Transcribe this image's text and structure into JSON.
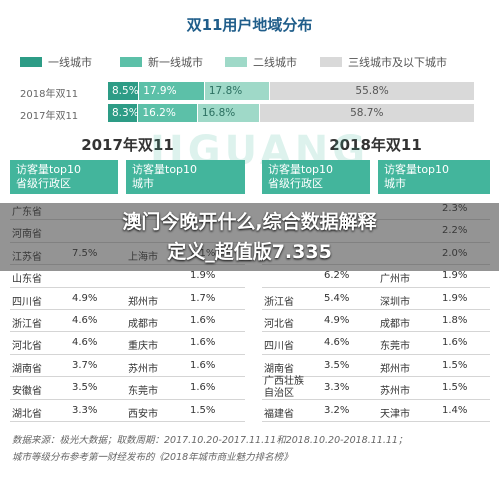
{
  "title": "双11用户地域分布",
  "legend": [
    {
      "label": "一线城市",
      "color": "#2d9c86"
    },
    {
      "label": "新一线城市",
      "color": "#5cc0a8"
    },
    {
      "label": "二线城市",
      "color": "#9fd9c8"
    },
    {
      "label": "三线城市及以下城市",
      "color": "#d9d9d9"
    }
  ],
  "chart_data": {
    "type": "bar",
    "stacked": true,
    "orientation": "horizontal",
    "title": "双11用户地域分布",
    "categories": [
      "2018年双11",
      "2017年双11"
    ],
    "series": [
      {
        "name": "一线城市",
        "values": [
          8.5,
          8.3
        ],
        "labels": [
          "8.5%",
          "8.3%"
        ]
      },
      {
        "name": "新一线城市",
        "values": [
          17.9,
          16.2
        ],
        "labels": [
          "17.9%",
          "16.2%"
        ]
      },
      {
        "name": "二线城市",
        "values": [
          17.8,
          16.8
        ],
        "labels": [
          "17.8%",
          "16.8%"
        ]
      },
      {
        "name": "三线城市及以下城市",
        "values": [
          55.8,
          58.7
        ],
        "labels": [
          "55.8%",
          "58.7%"
        ]
      }
    ]
  },
  "watermark": "JIGUANG",
  "panels": [
    {
      "year_title": "2017年双11",
      "prov_header": [
        "访客量top10",
        "省级行政区"
      ],
      "city_header": [
        "访客量top10",
        "城市"
      ],
      "rows": [
        {
          "prov": "广东省",
          "prov_pct": "",
          "city": "",
          "city_pct": ""
        },
        {
          "prov": "河南省",
          "prov_pct": "",
          "city": "",
          "city_pct": ""
        },
        {
          "prov": "江苏省",
          "prov_pct": "7.5%",
          "city": "上海市",
          "city_pct": "2.1%"
        },
        {
          "prov": "山东省",
          "prov_pct": "",
          "city": "",
          "city_pct": "1.9%"
        },
        {
          "prov": "四川省",
          "prov_pct": "4.9%",
          "city": "郑州市",
          "city_pct": "1.7%"
        },
        {
          "prov": "浙江省",
          "prov_pct": "4.6%",
          "city": "成都市",
          "city_pct": "1.6%"
        },
        {
          "prov": "河北省",
          "prov_pct": "4.6%",
          "city": "重庆市",
          "city_pct": "1.6%"
        },
        {
          "prov": "湖南省",
          "prov_pct": "3.7%",
          "city": "苏州市",
          "city_pct": "1.6%"
        },
        {
          "prov": "安徽省",
          "prov_pct": "3.5%",
          "city": "东莞市",
          "city_pct": "1.6%"
        },
        {
          "prov": "湖北省",
          "prov_pct": "3.3%",
          "city": "西安市",
          "city_pct": "1.5%"
        }
      ]
    },
    {
      "year_title": "2018年双11",
      "prov_header": [
        "访客量top10",
        "省级行政区"
      ],
      "city_header": [
        "访客量top10",
        "城市"
      ],
      "rows": [
        {
          "prov": "",
          "prov_pct": "",
          "city": "",
          "city_pct": "2.3%"
        },
        {
          "prov": "",
          "prov_pct": "",
          "city": "",
          "city_pct": "2.2%"
        },
        {
          "prov": "",
          "prov_pct": "",
          "city": "",
          "city_pct": "2.0%"
        },
        {
          "prov": "",
          "prov_pct": "6.2%",
          "city": "广州市",
          "city_pct": "1.9%"
        },
        {
          "prov": "浙江省",
          "prov_pct": "5.4%",
          "city": "深圳市",
          "city_pct": "1.9%"
        },
        {
          "prov": "河北省",
          "prov_pct": "4.9%",
          "city": "成都市",
          "city_pct": "1.8%"
        },
        {
          "prov": "四川省",
          "prov_pct": "4.6%",
          "city": "东莞市",
          "city_pct": "1.6%"
        },
        {
          "prov": "湖南省",
          "prov_pct": "3.5%",
          "city": "郑州市",
          "city_pct": "1.5%"
        },
        {
          "prov": "广西壮族\n自治区",
          "prov_pct": "3.3%",
          "city": "苏州市",
          "city_pct": "1.5%"
        },
        {
          "prov": "福建省",
          "prov_pct": "3.2%",
          "city": "天津市",
          "city_pct": "1.4%"
        }
      ]
    }
  ],
  "overlay": {
    "line1": "澳门今晚开什么,综合数据解释",
    "line2": "定义_超值版7.335"
  },
  "footnotes": [
    "数据来源：极光大数据；取数周期：2017.10.20-2017.11.11和2018.10.20-2018.11.11；",
    "城市等级分布参考第一财经发布的《2018年城市商业魅力排名榜》"
  ]
}
